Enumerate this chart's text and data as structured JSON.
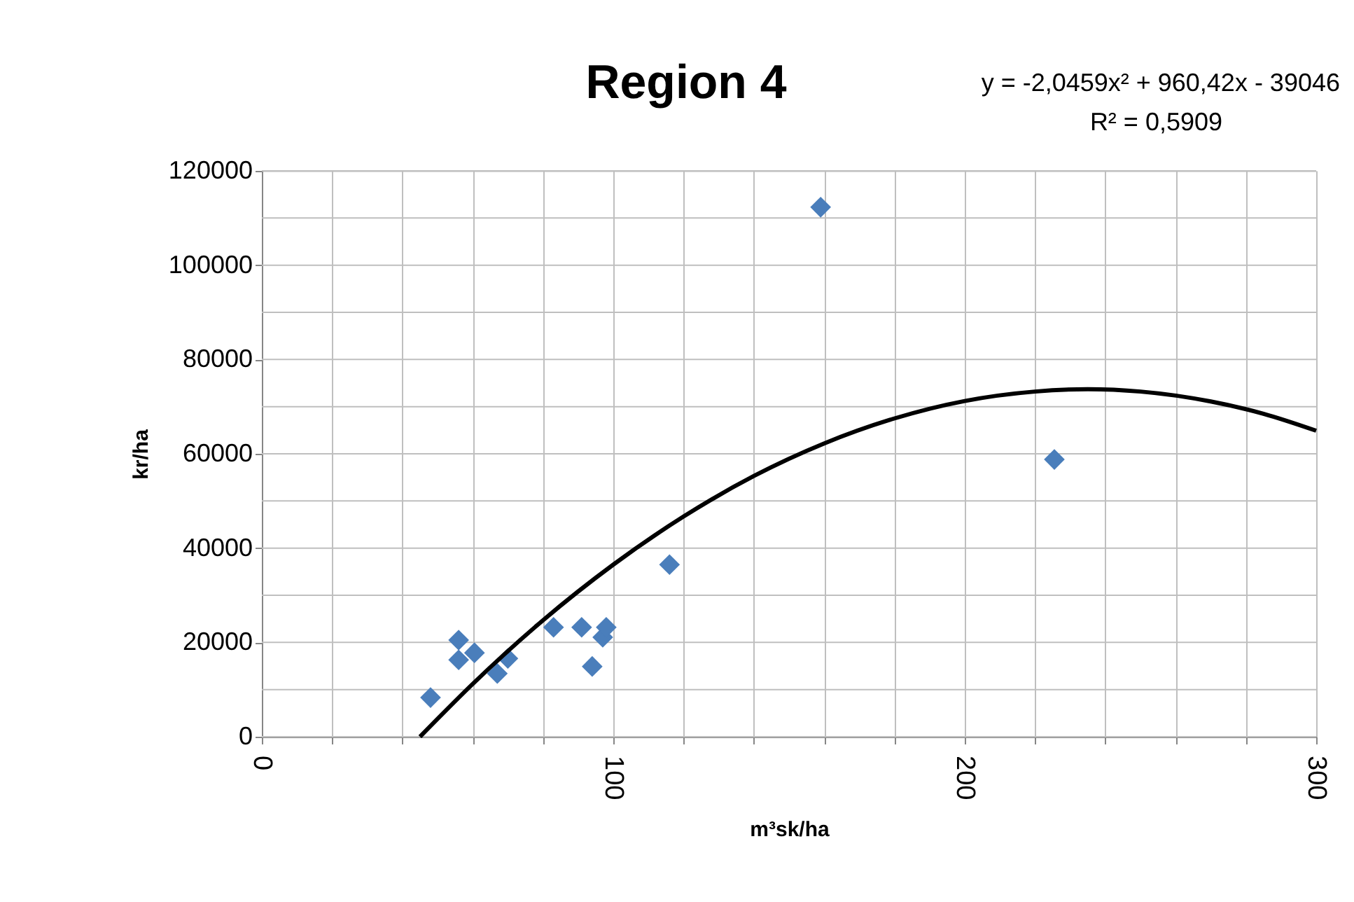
{
  "chart_data": {
    "type": "scatter",
    "title": "Region 4",
    "xlabel": "m³sk/ha",
    "ylabel": "kr/ha",
    "annotations": [
      "y = -2,0459x² + 960,42x - 39046",
      "R² = 0,5909"
    ],
    "series": [
      {
        "color": "#4a7ebb",
        "marker": "diamond",
        "x": [
          48,
          56,
          56,
          60.5,
          67,
          70,
          83,
          91,
          94,
          97,
          98,
          116,
          159,
          225.5
        ],
        "values": [
          8300,
          20500,
          16300,
          17800,
          13400,
          16600,
          23200,
          23200,
          14900,
          21100,
          23200,
          36500,
          112300,
          58800
        ]
      },
      {
        "type": "line",
        "color": "#000000",
        "marker": "none",
        "line_style": "solid",
        "x": [
          45,
          60,
          80,
          100,
          120,
          140,
          160,
          180,
          200,
          220,
          235,
          250,
          270,
          285,
          300
        ],
        "values": [
          0,
          11200,
          24700,
          36500,
          46700,
          55300,
          62200,
          67500,
          71200,
          73200,
          73700,
          73200,
          71100,
          68500,
          64900
        ]
      }
    ],
    "xlim": [
      0,
      300
    ],
    "xticks": [
      0,
      {
        "value": 20,
        "label": null
      },
      {
        "value": 40,
        "label": null
      },
      {
        "value": 60,
        "label": null
      },
      {
        "value": 80,
        "label": null
      },
      100,
      {
        "value": 120,
        "label": null
      },
      {
        "value": 140,
        "label": null
      },
      {
        "value": 160,
        "label": null
      },
      {
        "value": 180,
        "label": null
      },
      200,
      {
        "value": 220,
        "label": null
      },
      {
        "value": 240,
        "label": null
      },
      {
        "value": 260,
        "label": null
      },
      {
        "value": 280,
        "label": null
      },
      300
    ],
    "ylim": [
      0,
      120000
    ],
    "yticks": [
      0,
      {
        "value": 10000,
        "label": null
      },
      20000,
      {
        "value": 30000,
        "label": null
      },
      40000,
      {
        "value": 50000,
        "label": null
      },
      60000,
      {
        "value": 70000,
        "label": null
      },
      80000,
      {
        "value": 90000,
        "label": null
      },
      100000,
      {
        "value": 110000,
        "label": null
      },
      120000
    ],
    "grid": true
  }
}
